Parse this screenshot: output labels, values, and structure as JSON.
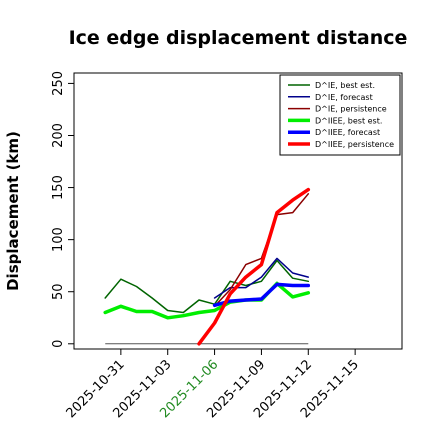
{
  "chart_data": {
    "type": "line",
    "title": "Ice edge displacement distance",
    "xlabel": "",
    "ylabel": "Displacement (km)",
    "ylim": [
      -5,
      260
    ],
    "yticks": [
      0,
      50,
      100,
      150,
      200,
      250
    ],
    "xlim": [
      "2025-10-28",
      "2025-11-18"
    ],
    "xticks": [
      "2025-10-31",
      "2025-11-03",
      "2025-11-06",
      "2025-11-09",
      "2025-11-12",
      "2025-11-15"
    ],
    "highlight_tick": "2025-11-06",
    "highlight_color": "#228B22",
    "grid": false,
    "legend_position": "top-right",
    "series": [
      {
        "name": "D^IE, best est.",
        "color": "#006400",
        "width": 1.5,
        "x": [
          "2025-10-30",
          "2025-10-31",
          "2025-11-01",
          "2025-11-02",
          "2025-11-03",
          "2025-11-04",
          "2025-11-05",
          "2025-11-06",
          "2025-11-07",
          "2025-11-08",
          "2025-11-09",
          "2025-11-10",
          "2025-11-11",
          "2025-11-12"
        ],
        "values": [
          44,
          62,
          55,
          44,
          32,
          30,
          42,
          38,
          60,
          56,
          60,
          80,
          63,
          60
        ]
      },
      {
        "name": "D^IE, forecast",
        "color": "#00008B",
        "width": 1.5,
        "x": [
          "2025-11-06",
          "2025-11-07",
          "2025-11-08",
          "2025-11-09",
          "2025-11-10",
          "2025-11-11",
          "2025-11-12"
        ],
        "values": [
          44,
          54,
          54,
          64,
          82,
          68,
          64
        ]
      },
      {
        "name": "D^IE, persistence",
        "color": "#8B0000",
        "width": 1.5,
        "x": [
          "2025-11-06",
          "2025-11-07",
          "2025-11-08",
          "2025-11-09",
          "2025-11-10",
          "2025-11-11",
          "2025-11-12"
        ],
        "values": [
          36,
          52,
          76,
          82,
          124,
          126,
          144
        ]
      },
      {
        "name": "D^IIEE, best est.",
        "color": "#00EE00",
        "width": 3.5,
        "x": [
          "2025-10-30",
          "2025-10-31",
          "2025-11-01",
          "2025-11-02",
          "2025-11-03",
          "2025-11-04",
          "2025-11-05",
          "2025-11-06",
          "2025-11-07",
          "2025-11-08",
          "2025-11-09",
          "2025-11-10",
          "2025-11-11",
          "2025-11-12"
        ],
        "values": [
          30,
          36,
          31,
          31,
          25,
          27,
          30,
          32,
          40,
          42,
          42,
          58,
          45,
          49
        ]
      },
      {
        "name": "D^IIEE, forecast",
        "color": "#0000FF",
        "width": 3.5,
        "x": [
          "2025-11-06",
          "2025-11-07",
          "2025-11-08",
          "2025-11-09",
          "2025-11-10",
          "2025-11-11",
          "2025-11-12"
        ],
        "values": [
          37,
          41,
          42,
          43,
          57,
          56,
          56
        ]
      },
      {
        "name": "D^IIEE, persistence",
        "color": "#FF0000",
        "width": 3.5,
        "x": [
          "2025-11-05",
          "2025-11-06",
          "2025-11-07",
          "2025-11-08",
          "2025-11-09",
          "2025-11-10",
          "2025-11-11",
          "2025-11-12"
        ],
        "values": [
          0,
          20,
          48,
          64,
          76,
          126,
          138,
          148
        ]
      }
    ],
    "reference_line": {
      "color": "#555555",
      "width": 1,
      "y": 0,
      "x": [
        "2025-10-30",
        "2025-11-12"
      ]
    }
  }
}
